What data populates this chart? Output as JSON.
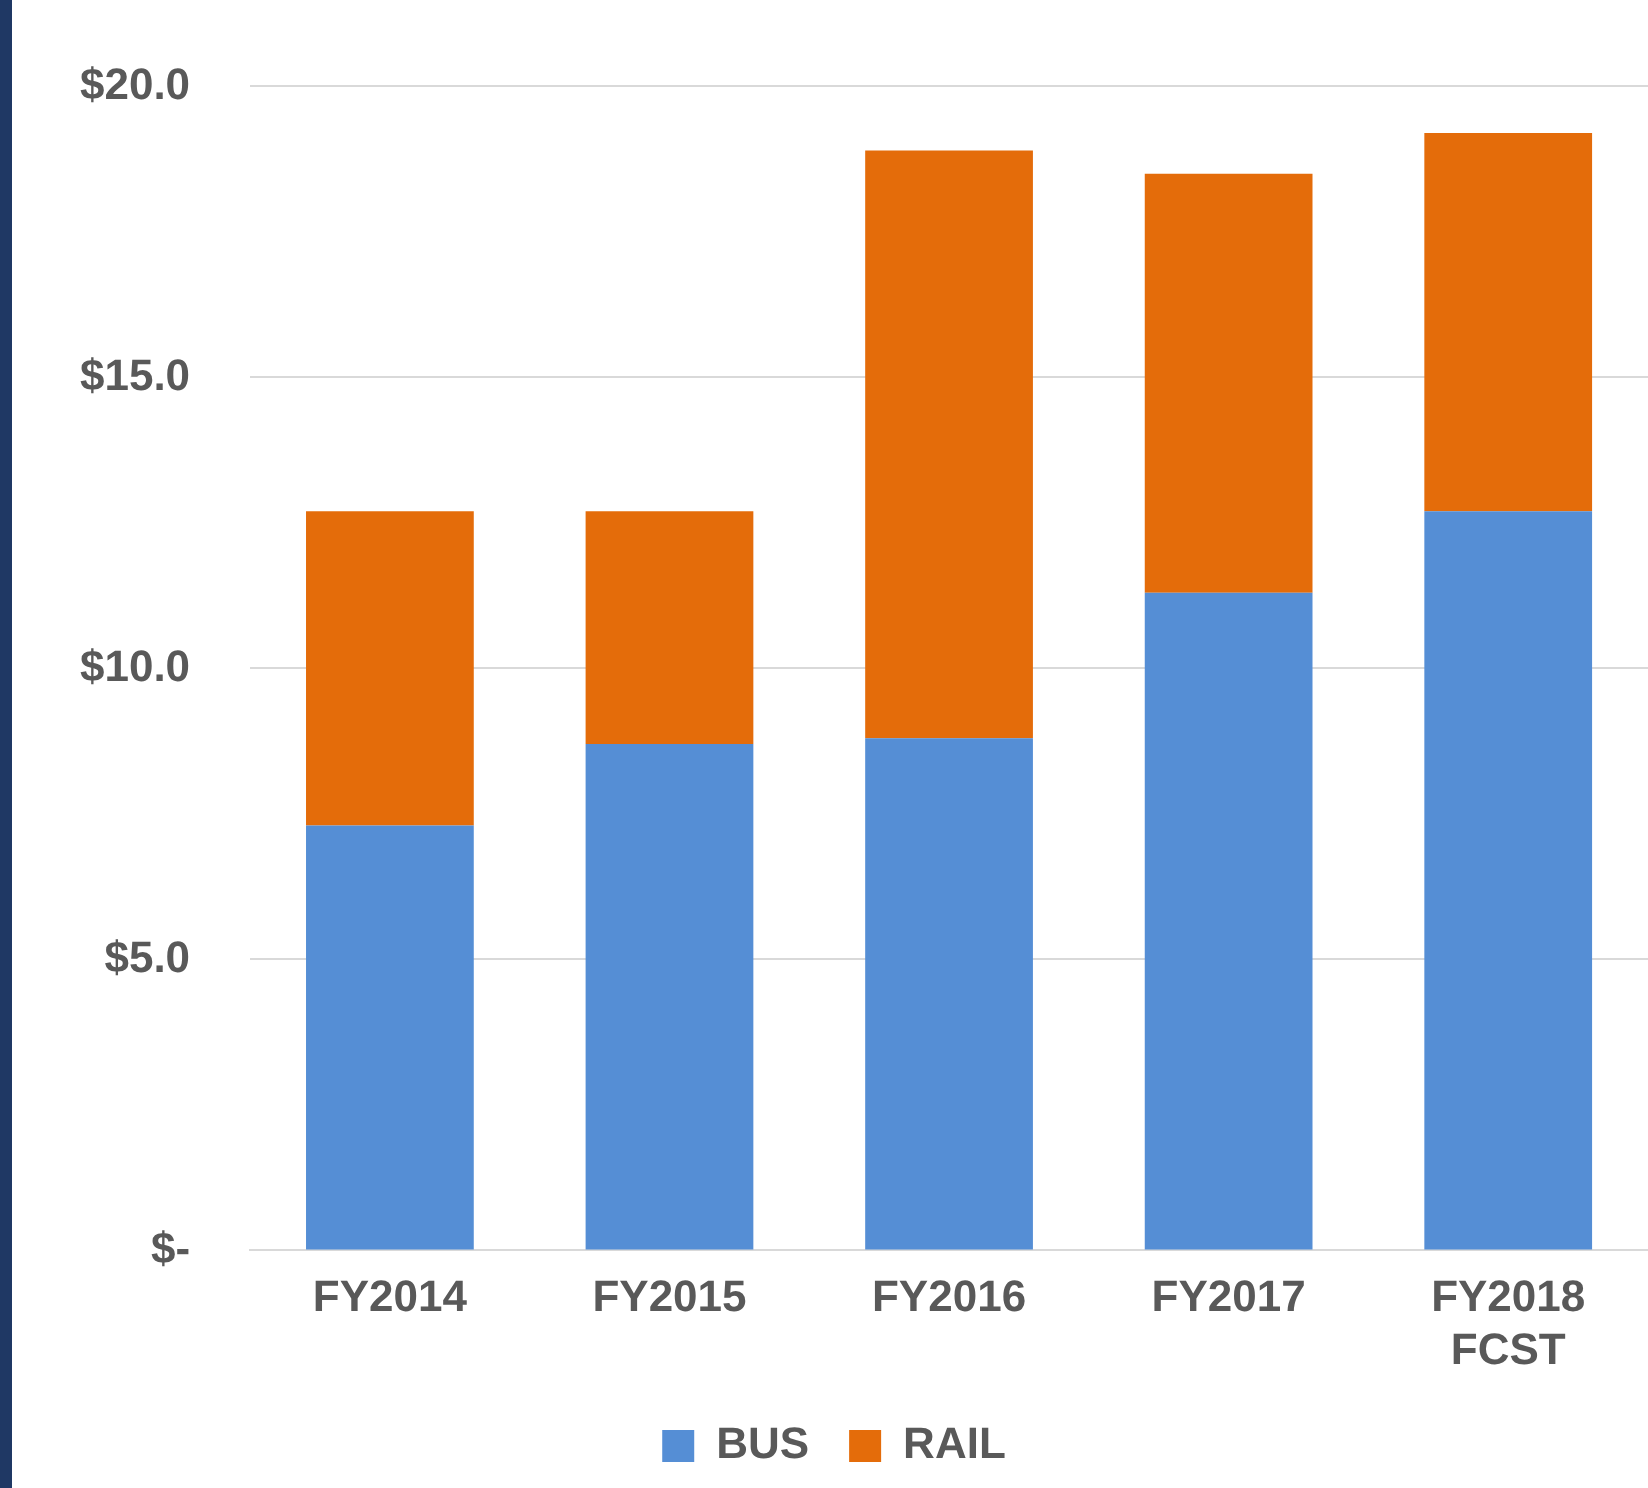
{
  "chart_data": {
    "type": "bar",
    "stacked": true,
    "categories": [
      "FY2014",
      "FY2015",
      "FY2016",
      "FY2017",
      "FY2018 FCST"
    ],
    "series": [
      {
        "name": "BUS",
        "color": "#558ed5",
        "values": [
          7.3,
          8.7,
          8.8,
          11.3,
          12.7
        ]
      },
      {
        "name": "RAIL",
        "color": "#e46c0a",
        "values": [
          5.4,
          4.0,
          10.1,
          7.2,
          6.5
        ]
      }
    ],
    "ylim": [
      0,
      20
    ],
    "yticks": [
      {
        "value": 0,
        "label": "$-"
      },
      {
        "value": 5,
        "label": "$5.0"
      },
      {
        "value": 10,
        "label": "$10.0"
      },
      {
        "value": 15,
        "label": "$15.0"
      },
      {
        "value": 20,
        "label": "$20.0"
      }
    ],
    "grid": "y",
    "legend": "bottom"
  }
}
